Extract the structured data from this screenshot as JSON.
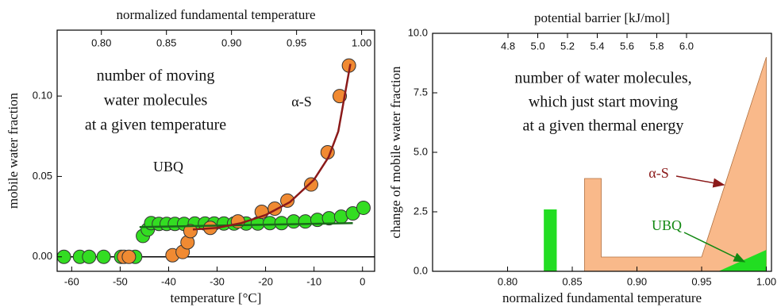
{
  "chart_data": [
    {
      "type": "scatter",
      "xlabel": "temperature [°C]",
      "ylabel": "mobile water fraction",
      "x2label": "normalized fundamental temperature",
      "xlim": [
        -63,
        2.5
      ],
      "ylim": [
        -0.009,
        0.141
      ],
      "x2lim": [
        0.766,
        1.01
      ],
      "xticks": [
        -60,
        -50,
        -40,
        -30,
        -20,
        -10,
        0
      ],
      "yticks": [
        {
          "value": 0,
          "label": "0.00"
        },
        {
          "value": 0.05,
          "label": "0.05"
        },
        {
          "value": 0.1,
          "label": "0.10"
        }
      ],
      "x2ticks": [
        {
          "value": 0.8,
          "label": "0.80"
        },
        0.85,
        {
          "value": 0.9,
          "label": "0.90"
        },
        0.95,
        {
          "value": 1.0,
          "label": "1.00"
        }
      ],
      "annotations": [
        "number of moving",
        "water molecules",
        "at a given temperature"
      ],
      "series": [
        {
          "name": "UBQ",
          "color": "#33dd22",
          "x": [
            -61.6,
            -58.3,
            -56.4,
            -53.4,
            -49.8,
            -46.9,
            -45.3,
            -44.3,
            -43.6,
            -42,
            -40.4,
            -38.7,
            -36.8,
            -34.6,
            -32.5,
            -30.6,
            -28.6,
            -26.5,
            -24,
            -21.6,
            -19.1,
            -16.7,
            -14.2,
            -11.8,
            -9.3,
            -6.9,
            -4.4,
            -2,
            0.2
          ],
          "values": [
            0,
            0,
            0,
            0,
            0,
            0,
            0.013,
            0.017,
            0.021,
            0.0205,
            0.0205,
            0.0205,
            0.0205,
            0.0207,
            0.0207,
            0.0207,
            0.0207,
            0.0207,
            0.0207,
            0.0207,
            0.021,
            0.021,
            0.022,
            0.022,
            0.023,
            0.024,
            0.025,
            0.027,
            0.0305
          ]
        },
        {
          "name": "α-S",
          "color": "#f08a32",
          "x": [
            -49.2,
            -48.2,
            -39.2,
            -37.1,
            -36.1,
            -35.5,
            -31.4,
            -25.7,
            -20.8,
            -18.1,
            -15.5,
            -10.6,
            -7.2,
            -4.7,
            -2.8
          ],
          "values": [
            0,
            0,
            0.001,
            0.003,
            0.009,
            0.016,
            0.018,
            0.022,
            0.028,
            0.03,
            0.035,
            0.045,
            0.065,
            0.1,
            0.119
          ]
        }
      ],
      "fits": [
        {
          "color": "#1a6a1a",
          "x": [
            -46,
            -2
          ],
          "values": [
            0.0185,
            0.021
          ]
        },
        {
          "color": "#8b1a1a",
          "x": [
            -35,
            -30,
            -25,
            -20,
            -15,
            -10,
            -7,
            -5,
            -2.5
          ],
          "values": [
            0.017,
            0.018,
            0.021,
            0.026,
            0.034,
            0.048,
            0.062,
            0.078,
            0.12
          ]
        }
      ]
    },
    {
      "type": "area",
      "xlabel": "normalized fundamental temperature",
      "ylabel": "change of mobile water fraction",
      "x2label": "potential barrier [kJ/mol]",
      "xlim": [
        0.742,
        1.004
      ],
      "ylim": [
        0,
        10
      ],
      "x2lim": [
        4.293,
        6.571
      ],
      "xticks": [
        {
          "value": 0.8,
          "label": "0.80"
        },
        0.85,
        {
          "value": 0.9,
          "label": "0.90"
        },
        0.95,
        {
          "value": 1.0,
          "label": "1.00"
        }
      ],
      "yticks": [
        {
          "value": 0,
          "label": "0.0"
        },
        2.5,
        {
          "value": 5,
          "label": "5.0"
        },
        7.5,
        {
          "value": 10,
          "label": "10.0"
        }
      ],
      "x2ticks": [
        4.8,
        {
          "value": 5,
          "label": "5.0"
        },
        5.2,
        5.4,
        5.6,
        5.8,
        {
          "value": 6,
          "label": "6.0"
        }
      ],
      "annotations": [
        "number of water molecules,",
        "which just start moving",
        "at a given thermal energy"
      ],
      "series": [
        {
          "name": "α-S",
          "color": "#f9b98a",
          "x": [
            0.8595,
            0.8595,
            0.8724,
            0.8724,
            0.95,
            1.0,
            1.0
          ],
          "values": [
            0,
            3.9,
            3.9,
            0.6,
            0.6,
            9.0,
            0
          ]
        },
        {
          "name": "UBQ",
          "color": "#22dd22",
          "x": [
            0.828,
            0.828,
            0.838,
            0.838,
            null,
            0.963,
            1.0,
            1.0
          ],
          "values": [
            0,
            2.6,
            2.6,
            0,
            null,
            0,
            0.9,
            0
          ]
        }
      ]
    }
  ]
}
